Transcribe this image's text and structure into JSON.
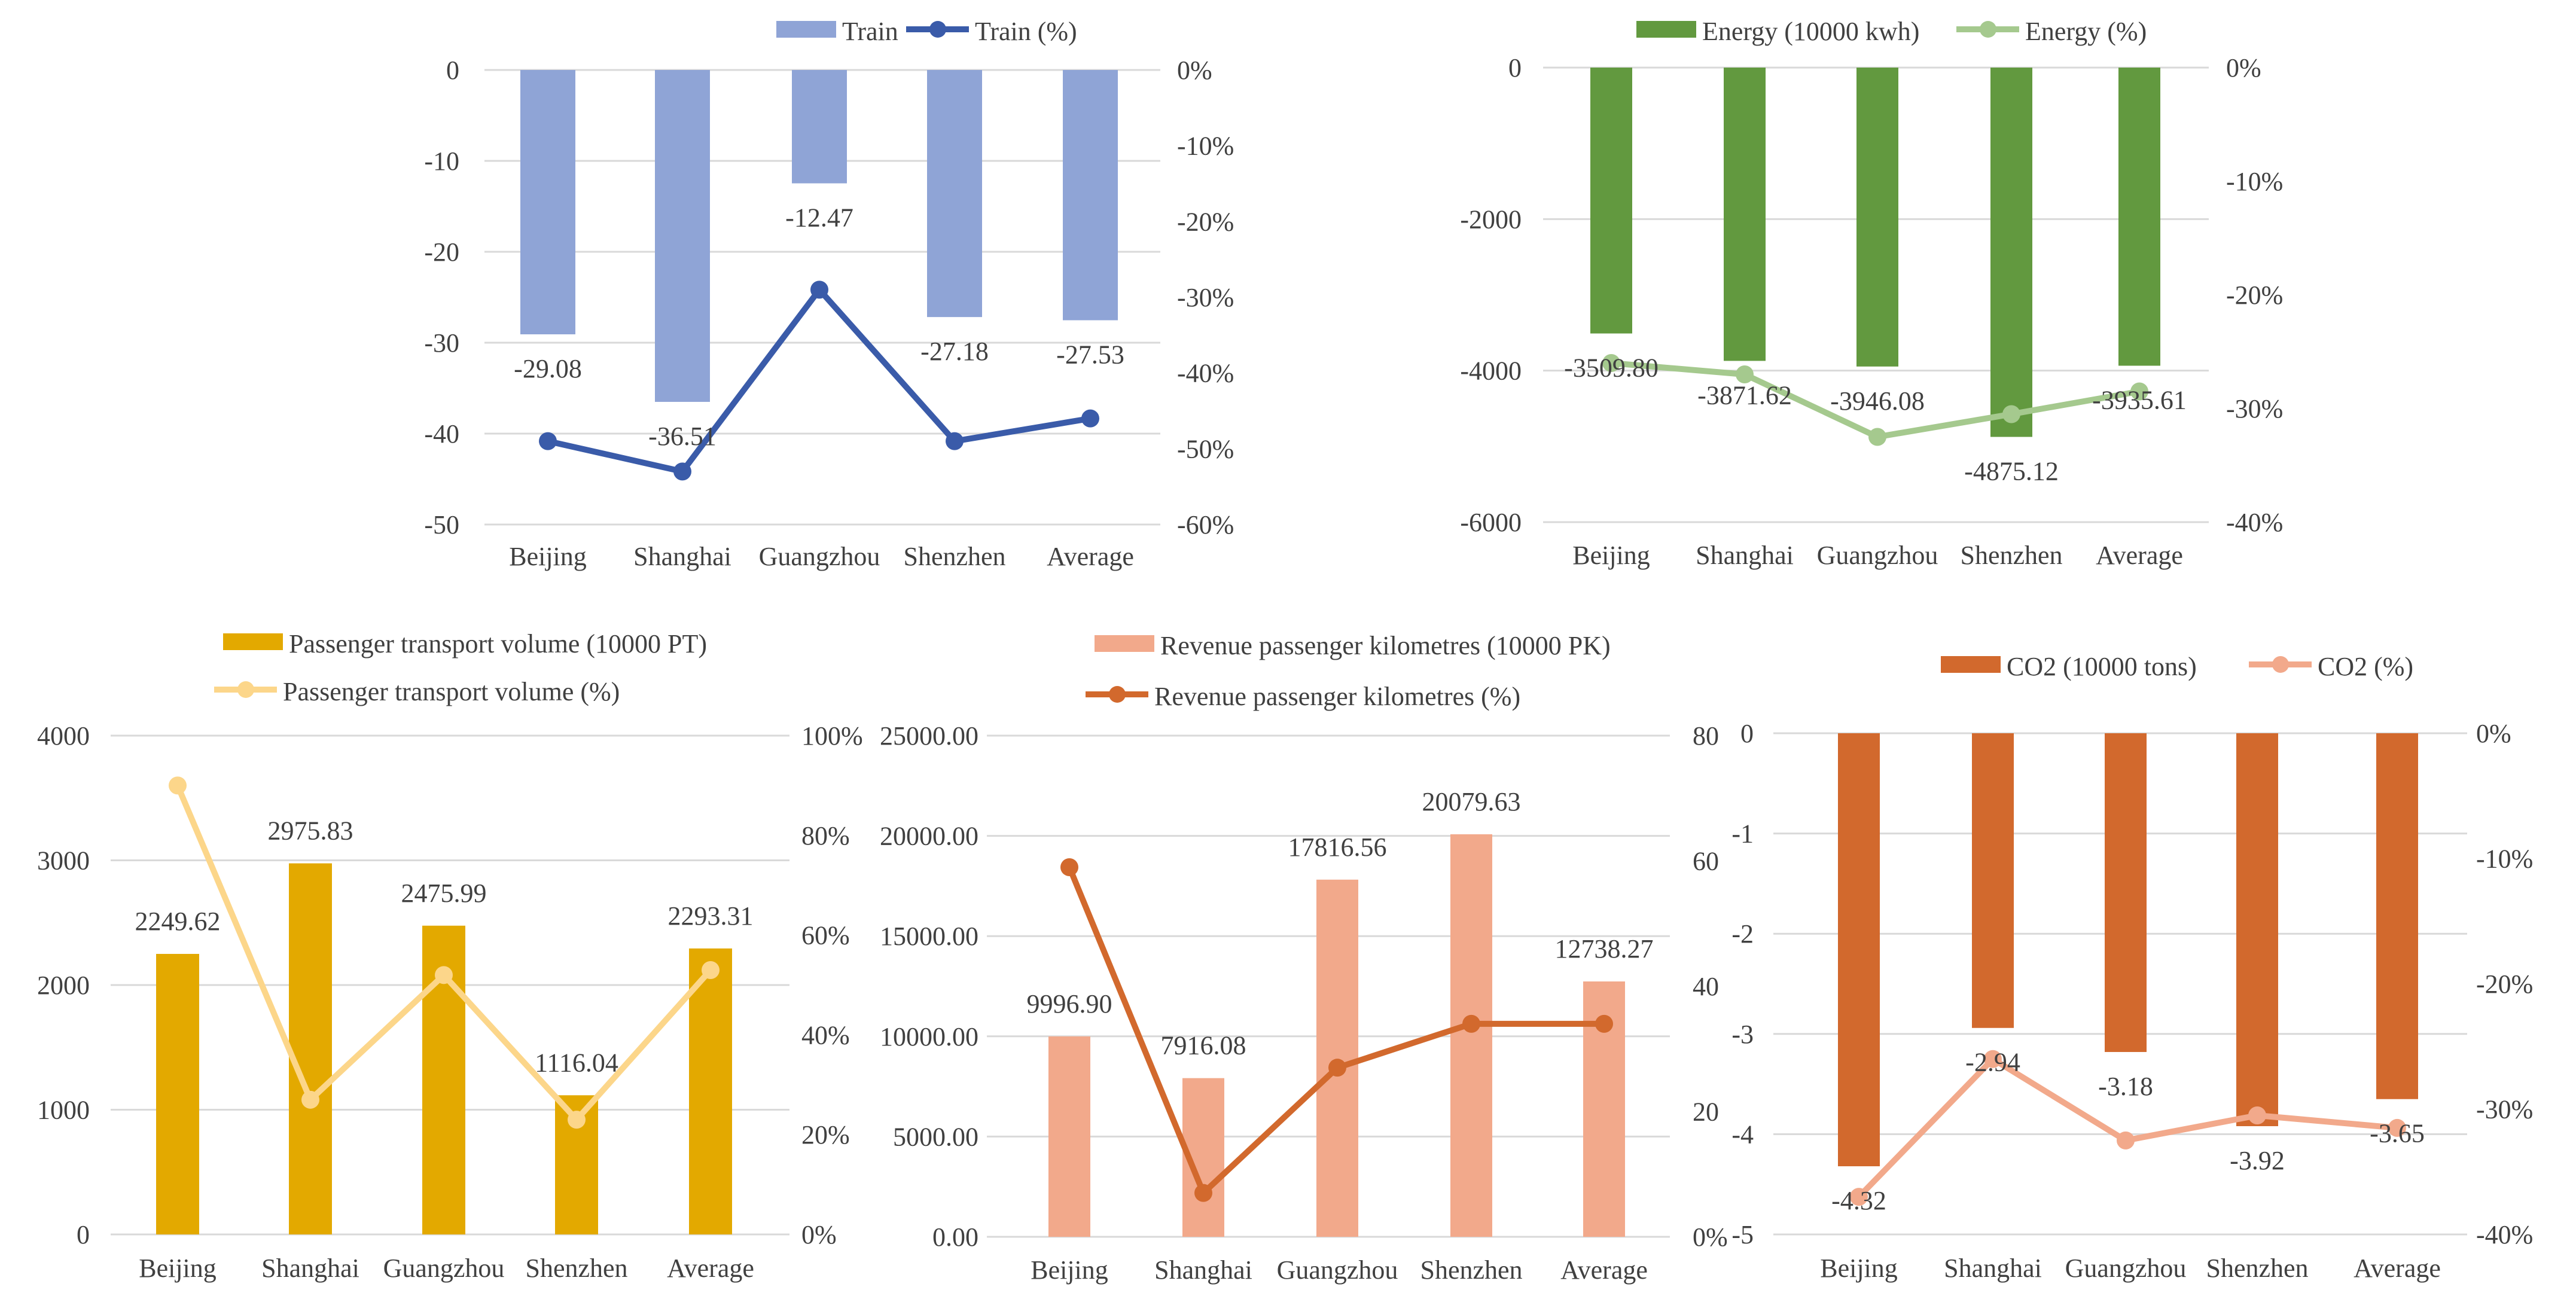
{
  "chart_data": [
    {
      "id": "train",
      "type": "bar+line",
      "categories": [
        "Beijing",
        "Shanghai",
        "Guangzhou",
        "Shenzhen",
        "Average"
      ],
      "bar": {
        "name": "Train",
        "color": "#8FA4D6",
        "values": [
          -29.08,
          -36.51,
          -12.47,
          -27.18,
          -27.53
        ],
        "labels": [
          "-29.08",
          "-36.51",
          "-12.47",
          "-27.18",
          "-27.53"
        ]
      },
      "line": {
        "name": "Train (%)",
        "color": "#3A5BA9",
        "values": [
          -49,
          -53,
          -29,
          -49,
          -46
        ]
      },
      "y_left": {
        "min": -50,
        "max": 0,
        "ticks": [
          "0",
          "-10",
          "-20",
          "-30",
          "-40",
          "-50"
        ]
      },
      "y_right": {
        "min": -60,
        "max": 0,
        "ticks": [
          "0%",
          "-10%",
          "-20%",
          "-30%",
          "-40%",
          "-50%",
          "-60%"
        ]
      },
      "legend": "top"
    },
    {
      "id": "energy",
      "type": "bar+line",
      "categories": [
        "Beijing",
        "Shanghai",
        "Guangzhou",
        "Shenzhen",
        "Average"
      ],
      "bar": {
        "name": "Energy  (10000 kwh)",
        "color": "#62993F",
        "values": [
          -3509.8,
          -3871.62,
          -3946.08,
          -4875.12,
          -3935.61
        ],
        "labels": [
          "-3509.80",
          "-3871.62",
          "-3946.08",
          "-4875.12",
          "-3935.61"
        ]
      },
      "line": {
        "name": "Energy  (%)",
        "color": "#A5C98E",
        "values": [
          -26,
          -27,
          -32.5,
          -30.5,
          -28.5
        ]
      },
      "y_left": {
        "min": -6000,
        "max": 0,
        "ticks": [
          "0",
          "-2000",
          "-4000",
          "-6000"
        ]
      },
      "y_right": {
        "min": -40,
        "max": 0,
        "ticks": [
          "0%",
          "-10%",
          "-20%",
          "-30%",
          "-40%"
        ]
      },
      "legend": "top"
    },
    {
      "id": "passenger",
      "type": "bar+line",
      "categories": [
        "Beijing",
        "Shanghai",
        "Guangzhou",
        "Shenzhen",
        "Average"
      ],
      "bar": {
        "name": "Passenger transport volume (10000 PT)",
        "color": "#E3A900",
        "values": [
          2249.62,
          2975.83,
          2475.99,
          1116.04,
          2293.31
        ],
        "labels": [
          "2249.62",
          "2975.83",
          "2475.99",
          "1116.04",
          "2293.31"
        ]
      },
      "line": {
        "name": "Passenger transport volume  (%)",
        "color": "#FCD68A",
        "values": [
          90,
          27,
          52,
          23,
          53
        ]
      },
      "y_left": {
        "min": 0,
        "max": 4000,
        "ticks": [
          "4000",
          "3000",
          "2000",
          "1000",
          "0"
        ]
      },
      "y_right": {
        "min": 0,
        "max": 100,
        "ticks": [
          "100%",
          "80%",
          "60%",
          "40%",
          "20%",
          "0%"
        ]
      },
      "legend": "top"
    },
    {
      "id": "revenue",
      "type": "bar+line",
      "categories": [
        "Beijing",
        "Shanghai",
        "Guangzhou",
        "Shenzhen",
        "Average"
      ],
      "bar": {
        "name": "Revenue passenger kilometres (10000 PK)",
        "color": "#F2A98B",
        "values": [
          9996.9,
          7916.08,
          17816.56,
          20079.63,
          12738.27
        ],
        "labels": [
          "9996.90",
          "7916.08",
          "17816.56",
          "20079.63",
          "12738.27"
        ]
      },
      "line": {
        "name": "Revenue passenger kilometres (%)",
        "color": "#D2692D",
        "values": [
          59,
          7,
          27,
          34,
          34
        ]
      },
      "y_left": {
        "min": 0,
        "max": 25000,
        "ticks": [
          "25000.00",
          "20000.00",
          "15000.00",
          "10000.00",
          "5000.00",
          "0.00"
        ]
      },
      "y_right": {
        "min": 0,
        "max": 80,
        "ticks": [
          "80",
          "60",
          "40",
          "20",
          "0%"
        ]
      },
      "legend": "top"
    },
    {
      "id": "co2",
      "type": "bar+line",
      "categories": [
        "Beijing",
        "Shanghai",
        "Guangzhou",
        "Shenzhen",
        "Average"
      ],
      "bar": {
        "name": "CO2 (10000 tons)",
        "color": "#D2692D",
        "values": [
          -4.32,
          -2.94,
          -3.18,
          -3.92,
          -3.65
        ],
        "labels": [
          "-4.32",
          "-2.94",
          "-3.18",
          "-3.92",
          "-3.65"
        ]
      },
      "line": {
        "name": "CO2 (%)",
        "color": "#F2A98B",
        "values": [
          -37,
          -26,
          -32.5,
          -30.5,
          -31.5
        ]
      },
      "y_left": {
        "min": -5,
        "max": 0,
        "ticks": [
          "0",
          "-1",
          "-2",
          "-3",
          "-4",
          "-5"
        ]
      },
      "y_right": {
        "min": -40,
        "max": 0,
        "ticks": [
          "0%",
          "-10%",
          "-20%",
          "-30%",
          "-40%"
        ]
      },
      "legend": "top"
    }
  ]
}
